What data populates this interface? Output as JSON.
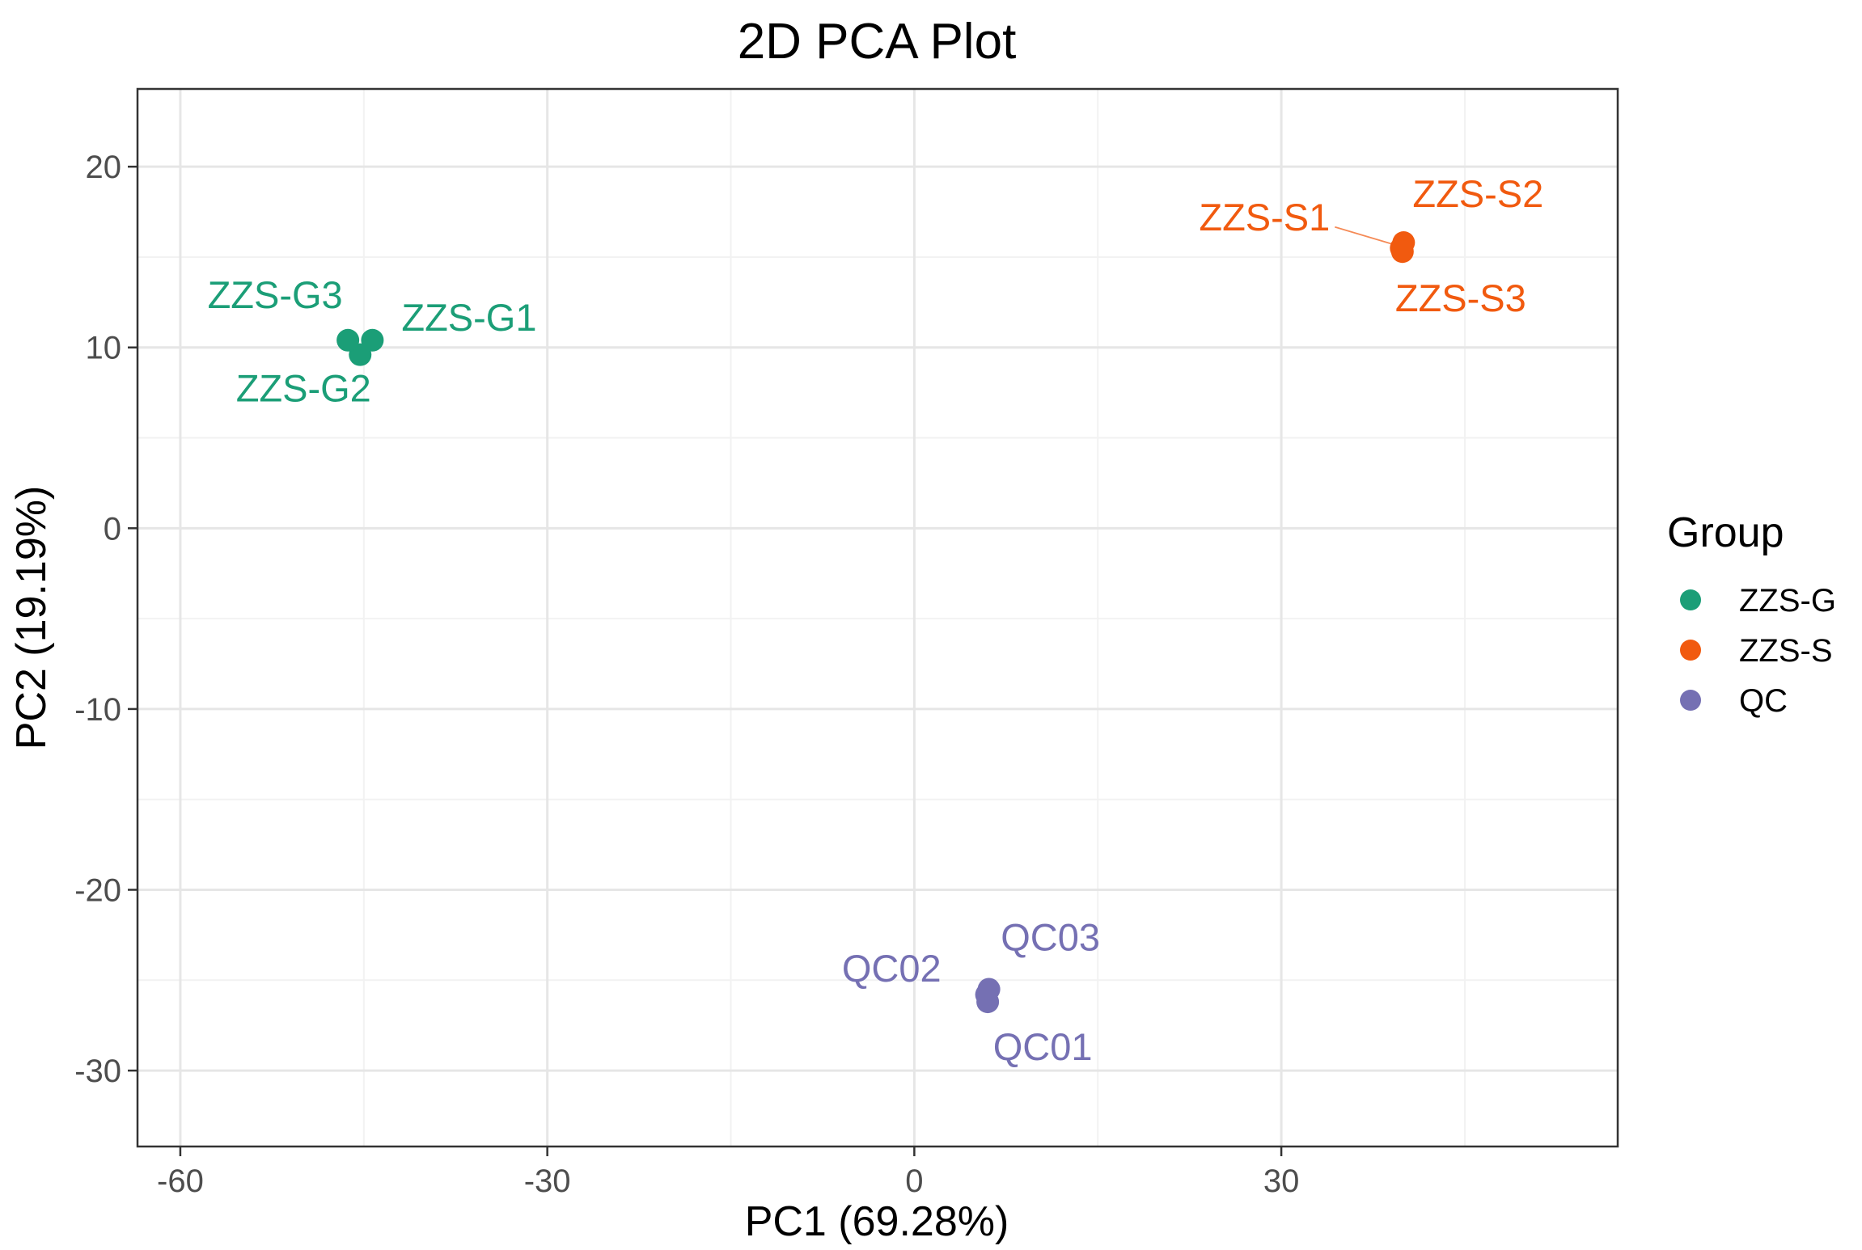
{
  "chart_data": {
    "type": "scatter",
    "title": "2D PCA Plot",
    "xlabel": "PC1 (69.28%)",
    "ylabel": "PC2 (19.19%)",
    "xlim": [
      -63.5,
      57.5
    ],
    "ylim": [
      -34.2,
      24.3
    ],
    "xticks": [
      -60,
      -30,
      0,
      30
    ],
    "yticks": [
      20,
      10,
      0,
      -10,
      -20,
      -30
    ],
    "grid": true,
    "legend": {
      "title": "Group",
      "position": "right"
    },
    "groups": [
      {
        "name": "ZZS-G",
        "color": "#1B9E77",
        "points": [
          {
            "label": "ZZS-G1",
            "x": -44.3,
            "y": 10.4
          },
          {
            "label": "ZZS-G2",
            "x": -45.3,
            "y": 9.6
          },
          {
            "label": "ZZS-G3",
            "x": -46.3,
            "y": 10.4
          }
        ]
      },
      {
        "name": "ZZS-S",
        "color": "#F15A0F",
        "points": [
          {
            "label": "ZZS-S1",
            "x": 39.8,
            "y": 15.5
          },
          {
            "label": "ZZS-S2",
            "x": 40.0,
            "y": 15.8
          },
          {
            "label": "ZZS-S3",
            "x": 39.9,
            "y": 15.3
          }
        ]
      },
      {
        "name": "QC",
        "color": "#7570B3",
        "points": [
          {
            "label": "QC01",
            "x": 6.0,
            "y": -26.2
          },
          {
            "label": "QC02",
            "x": 5.9,
            "y": -25.8
          },
          {
            "label": "QC03",
            "x": 6.1,
            "y": -25.5
          }
        ]
      }
    ]
  }
}
